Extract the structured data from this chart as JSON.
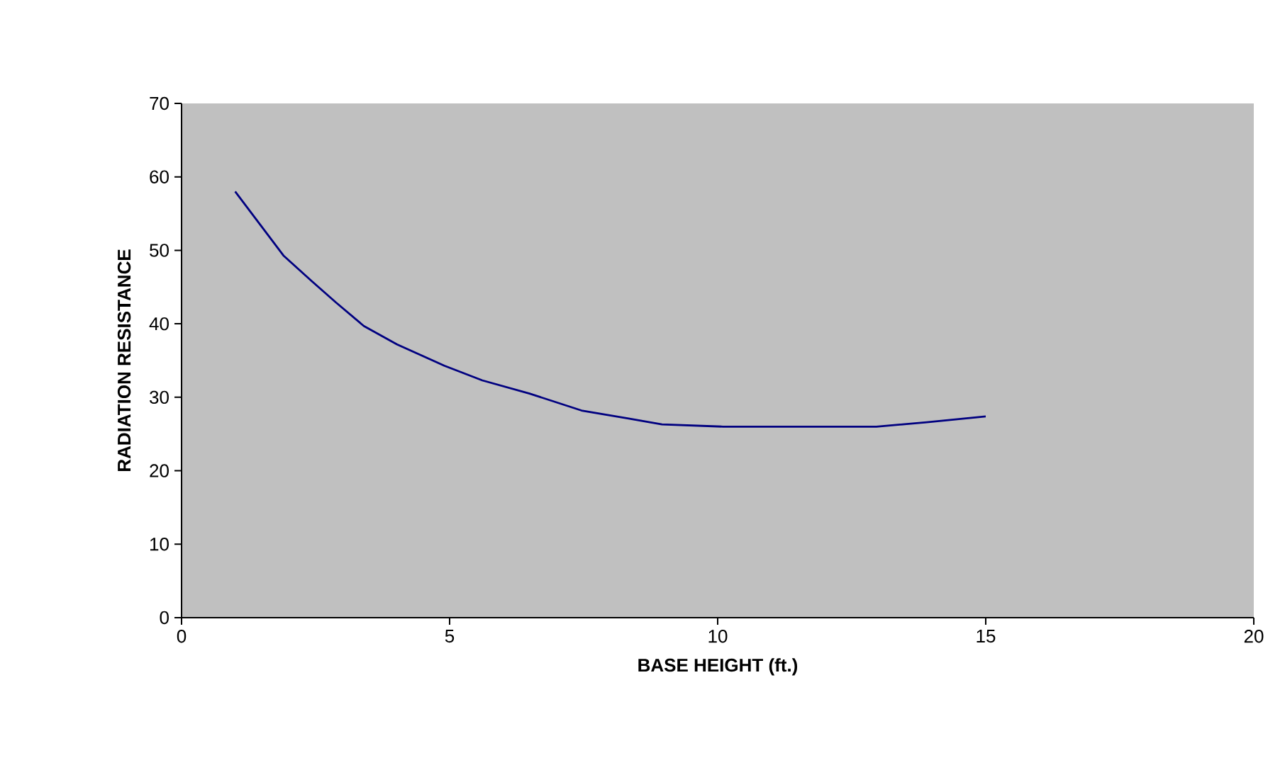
{
  "chart_data": {
    "type": "line",
    "xlabel": "BASE HEIGHT (ft.)",
    "ylabel": "RADIATION RESISTANCE",
    "x": [
      1.0,
      1.9,
      2.43,
      2.88,
      3.4,
      4.02,
      4.9,
      5.61,
      6.49,
      7.46,
      8.34,
      8.96,
      10.1,
      12.96,
      13.9,
      15.0
    ],
    "series": [
      {
        "color": "#000080",
        "values": [
          58.0,
          49.3,
          45.8,
          42.9,
          39.7,
          37.2,
          34.3,
          32.3,
          30.5,
          28.2,
          27.1,
          26.3,
          26.0,
          26.0,
          26.6,
          27.4
        ]
      }
    ],
    "xlim": [
      0,
      20
    ],
    "xticks": [
      0,
      5,
      10,
      15,
      20
    ],
    "ylim": [
      0,
      70
    ],
    "yticks": [
      0,
      10,
      20,
      30,
      40,
      50,
      60,
      70
    ],
    "grid": false,
    "marker": "none",
    "line_style": "solid"
  }
}
